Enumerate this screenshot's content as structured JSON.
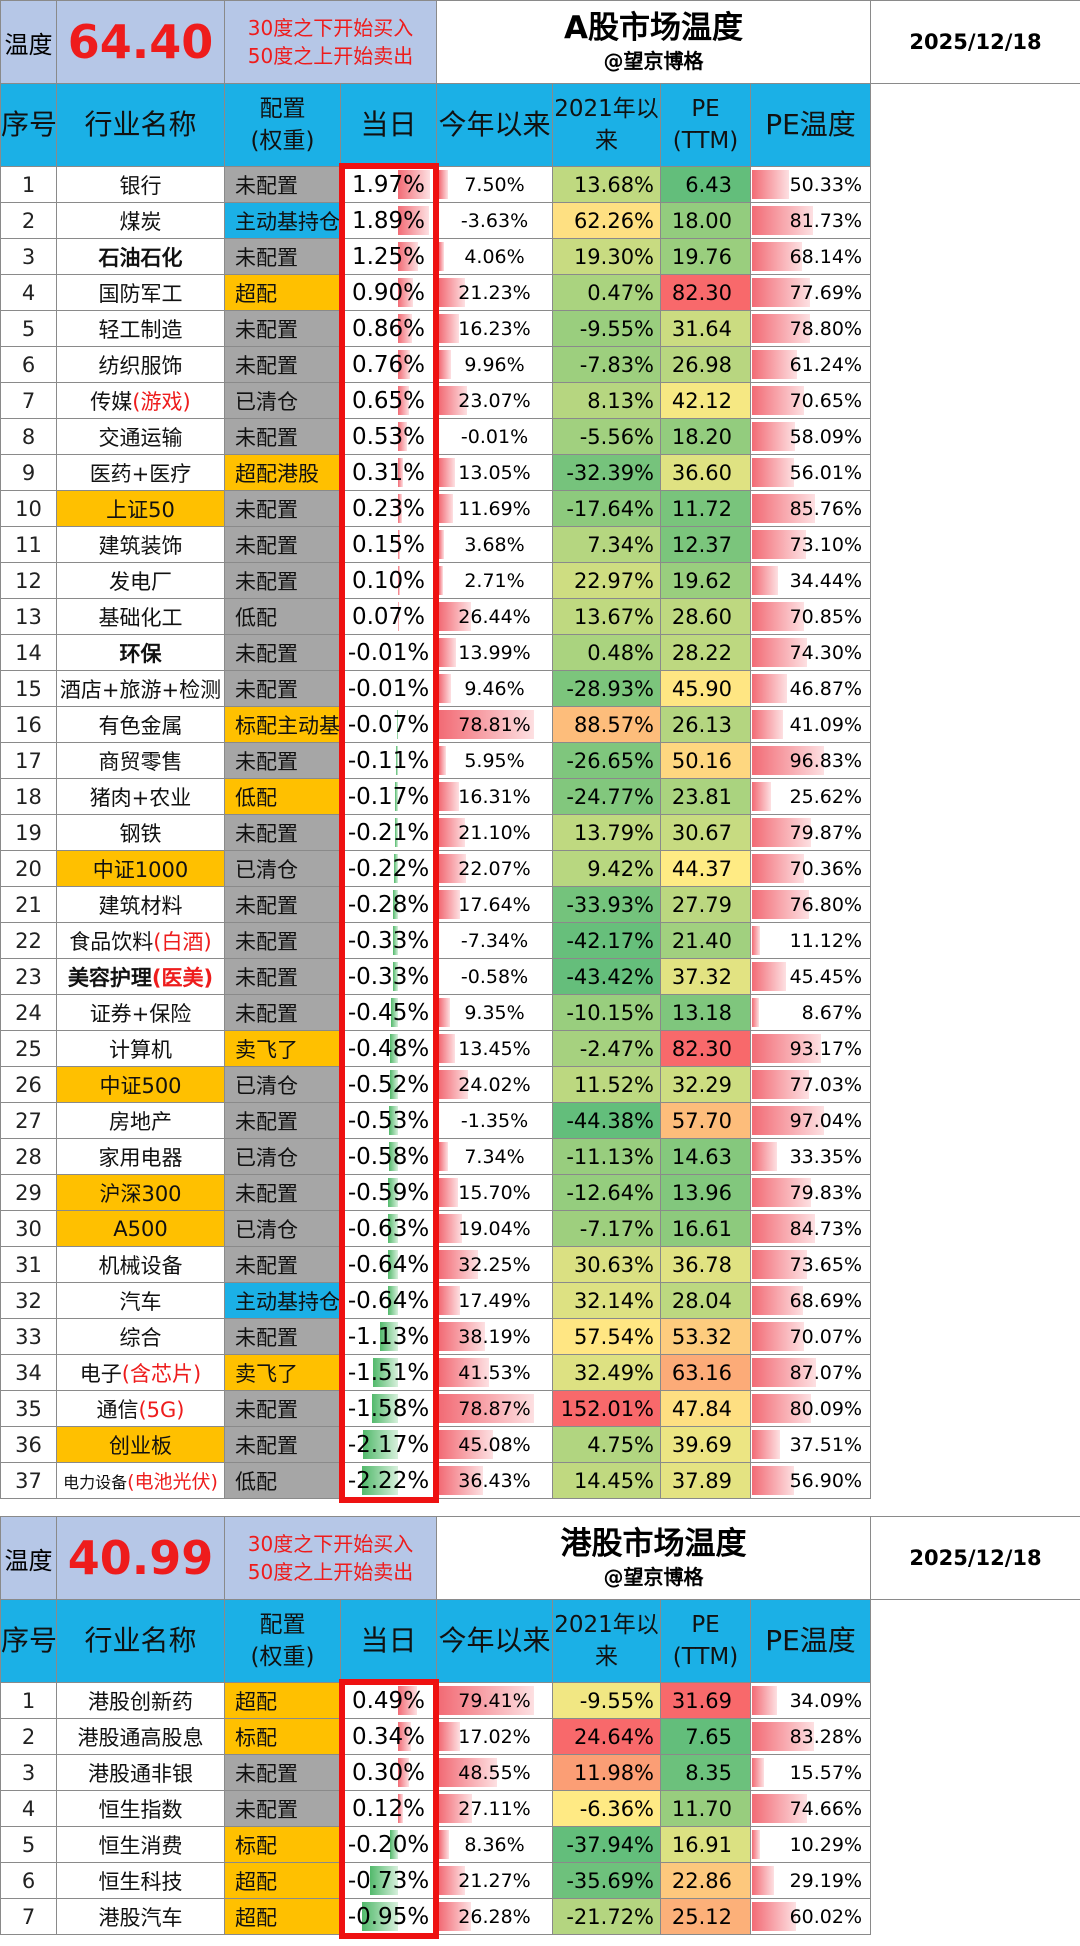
{
  "a_share": {
    "temp_label": "温度",
    "score": "64.40",
    "rule_buy": "30度之下开始买入",
    "rule_sell": "50度之上开始卖出",
    "title": "A股市场温度",
    "author": "@望京博格",
    "date": "2025/12/18",
    "headers": {
      "idx": "序号",
      "name": "行业名称",
      "cfg": "配置\n(权重)",
      "day": "当日",
      "ytd": "今年以来",
      "since2021": "2021年以\n来",
      "pe": "PE\n(TTM)",
      "petemp": "PE温度"
    },
    "rows": [
      {
        "idx": "1",
        "name": "银行",
        "cfg": "未配置",
        "cfg_type": "none",
        "day": "1.97%",
        "ytd": "7.50%",
        "since2021": "13.68%",
        "pe": "6.43",
        "petemp": "50.33%"
      },
      {
        "idx": "2",
        "name": "煤炭",
        "cfg": "主动基持仓",
        "cfg_type": "active",
        "day": "1.89%",
        "ytd": "-3.63%",
        "since2021": "62.26%",
        "pe": "18.00",
        "petemp": "81.73%"
      },
      {
        "idx": "3",
        "name": "石油石化",
        "cfg": "未配置",
        "cfg_type": "none",
        "day": "1.25%",
        "ytd": "4.06%",
        "since2021": "19.30%",
        "pe": "19.76",
        "petemp": "68.14%",
        "bold": true
      },
      {
        "idx": "4",
        "name": "国防军工",
        "cfg": "超配",
        "cfg_type": "over",
        "day": "0.90%",
        "ytd": "21.23%",
        "since2021": "0.47%",
        "pe": "82.30",
        "petemp": "77.69%"
      },
      {
        "idx": "5",
        "name": "轻工制造",
        "cfg": "未配置",
        "cfg_type": "none",
        "day": "0.86%",
        "ytd": "16.23%",
        "since2021": "-9.55%",
        "pe": "31.64",
        "petemp": "78.80%"
      },
      {
        "idx": "6",
        "name": "纺织服饰",
        "cfg": "未配置",
        "cfg_type": "none",
        "day": "0.76%",
        "ytd": "9.96%",
        "since2021": "-7.83%",
        "pe": "26.98",
        "petemp": "61.24%"
      },
      {
        "idx": "7",
        "name": "传媒",
        "name_red": "(游戏)",
        "cfg": "已清仓",
        "cfg_type": "none",
        "day": "0.65%",
        "ytd": "23.07%",
        "since2021": "8.13%",
        "pe": "42.12",
        "petemp": "70.65%"
      },
      {
        "idx": "8",
        "name": "交通运输",
        "cfg": "未配置",
        "cfg_type": "none",
        "day": "0.53%",
        "ytd": "-0.01%",
        "since2021": "-5.56%",
        "pe": "18.20",
        "petemp": "58.09%"
      },
      {
        "idx": "9",
        "name": "医药+医疗",
        "cfg": "超配港股",
        "cfg_type": "over",
        "day": "0.31%",
        "ytd": "13.05%",
        "since2021": "-32.39%",
        "pe": "36.60",
        "petemp": "56.01%"
      },
      {
        "idx": "10",
        "name": "上证50",
        "cfg": "未配置",
        "cfg_type": "none",
        "day": "0.23%",
        "ytd": "11.69%",
        "since2021": "-17.64%",
        "pe": "11.72",
        "petemp": "85.76%",
        "hl": true
      },
      {
        "idx": "11",
        "name": "建筑装饰",
        "cfg": "未配置",
        "cfg_type": "none",
        "day": "0.15%",
        "ytd": "3.68%",
        "since2021": "7.34%",
        "pe": "12.37",
        "petemp": "73.10%"
      },
      {
        "idx": "12",
        "name": "发电厂",
        "cfg": "未配置",
        "cfg_type": "none",
        "day": "0.10%",
        "ytd": "2.71%",
        "since2021": "22.97%",
        "pe": "19.62",
        "petemp": "34.44%"
      },
      {
        "idx": "13",
        "name": "基础化工",
        "cfg": "低配",
        "cfg_type": "none",
        "day": "0.07%",
        "ytd": "26.44%",
        "since2021": "13.67%",
        "pe": "28.60",
        "petemp": "70.85%"
      },
      {
        "idx": "14",
        "name": "环保",
        "cfg": "未配置",
        "cfg_type": "none",
        "day": "-0.01%",
        "ytd": "13.99%",
        "since2021": "0.48%",
        "pe": "28.22",
        "petemp": "74.30%",
        "bold": true
      },
      {
        "idx": "15",
        "name": "酒店+旅游+检测",
        "cfg": "未配置",
        "cfg_type": "none",
        "day": "-0.01%",
        "ytd": "9.46%",
        "since2021": "-28.93%",
        "pe": "45.90",
        "petemp": "46.87%"
      },
      {
        "idx": "16",
        "name": "有色金属",
        "cfg": "标配主动基",
        "cfg_type": "over",
        "day": "-0.07%",
        "ytd": "78.81%",
        "since2021": "88.57%",
        "pe": "26.13",
        "petemp": "41.09%"
      },
      {
        "idx": "17",
        "name": "商贸零售",
        "cfg": "未配置",
        "cfg_type": "none",
        "day": "-0.11%",
        "ytd": "5.95%",
        "since2021": "-26.65%",
        "pe": "50.16",
        "petemp": "96.83%"
      },
      {
        "idx": "18",
        "name": "猪肉+农业",
        "cfg": "低配",
        "cfg_type": "over",
        "day": "-0.17%",
        "ytd": "16.31%",
        "since2021": "-24.77%",
        "pe": "23.81",
        "petemp": "25.62%"
      },
      {
        "idx": "19",
        "name": "钢铁",
        "cfg": "未配置",
        "cfg_type": "none",
        "day": "-0.21%",
        "ytd": "21.10%",
        "since2021": "13.79%",
        "pe": "30.67",
        "petemp": "79.87%"
      },
      {
        "idx": "20",
        "name": "中证1000",
        "cfg": "已清仓",
        "cfg_type": "none",
        "day": "-0.22%",
        "ytd": "22.07%",
        "since2021": "9.42%",
        "pe": "44.37",
        "petemp": "70.36%",
        "hl": true
      },
      {
        "idx": "21",
        "name": "建筑材料",
        "cfg": "未配置",
        "cfg_type": "none",
        "day": "-0.28%",
        "ytd": "17.64%",
        "since2021": "-33.93%",
        "pe": "27.79",
        "petemp": "76.80%"
      },
      {
        "idx": "22",
        "name": "食品饮料",
        "name_red": "(白酒)",
        "cfg": "未配置",
        "cfg_type": "none",
        "day": "-0.33%",
        "ytd": "-7.34%",
        "since2021": "-42.17%",
        "pe": "21.40",
        "petemp": "11.12%"
      },
      {
        "idx": "23",
        "name": "美容护理",
        "name_red": "(医美)",
        "cfg": "未配置",
        "cfg_type": "none",
        "day": "-0.33%",
        "ytd": "-0.58%",
        "since2021": "-43.42%",
        "pe": "37.32",
        "petemp": "45.45%",
        "bold": true
      },
      {
        "idx": "24",
        "name": "证券+保险",
        "cfg": "未配置",
        "cfg_type": "none",
        "day": "-0.45%",
        "ytd": "9.35%",
        "since2021": "-10.15%",
        "pe": "13.18",
        "petemp": "8.67%"
      },
      {
        "idx": "25",
        "name": "计算机",
        "cfg": "卖飞了",
        "cfg_type": "over",
        "day": "-0.48%",
        "ytd": "13.45%",
        "since2021": "-2.47%",
        "pe": "82.30",
        "petemp": "93.17%"
      },
      {
        "idx": "26",
        "name": "中证500",
        "cfg": "已清仓",
        "cfg_type": "none",
        "day": "-0.52%",
        "ytd": "24.02%",
        "since2021": "11.52%",
        "pe": "32.29",
        "petemp": "77.03%",
        "hl": true
      },
      {
        "idx": "27",
        "name": "房地产",
        "cfg": "未配置",
        "cfg_type": "none",
        "day": "-0.53%",
        "ytd": "-1.35%",
        "since2021": "-44.38%",
        "pe": "57.70",
        "petemp": "97.04%"
      },
      {
        "idx": "28",
        "name": "家用电器",
        "cfg": "已清仓",
        "cfg_type": "none",
        "day": "-0.58%",
        "ytd": "7.34%",
        "since2021": "-11.13%",
        "pe": "14.63",
        "petemp": "33.35%"
      },
      {
        "idx": "29",
        "name": "沪深300",
        "cfg": "未配置",
        "cfg_type": "none",
        "day": "-0.59%",
        "ytd": "15.70%",
        "since2021": "-12.64%",
        "pe": "13.96",
        "petemp": "79.83%",
        "hl": true
      },
      {
        "idx": "30",
        "name": "A500",
        "cfg": "已清仓",
        "cfg_type": "none",
        "day": "-0.63%",
        "ytd": "19.04%",
        "since2021": "-7.17%",
        "pe": "16.61",
        "petemp": "84.73%",
        "hl": true
      },
      {
        "idx": "31",
        "name": "机械设备",
        "cfg": "未配置",
        "cfg_type": "none",
        "day": "-0.64%",
        "ytd": "32.25%",
        "since2021": "30.63%",
        "pe": "36.78",
        "petemp": "73.65%"
      },
      {
        "idx": "32",
        "name": "汽车",
        "cfg": "主动基持仓",
        "cfg_type": "active",
        "day": "-0.64%",
        "ytd": "17.49%",
        "since2021": "32.14%",
        "pe": "28.04",
        "petemp": "68.69%"
      },
      {
        "idx": "33",
        "name": "综合",
        "cfg": "未配置",
        "cfg_type": "none",
        "day": "-1.13%",
        "ytd": "38.19%",
        "since2021": "57.54%",
        "pe": "53.32",
        "petemp": "70.07%"
      },
      {
        "idx": "34",
        "name": "电子",
        "name_red": "(含芯片)",
        "cfg": "卖飞了",
        "cfg_type": "over",
        "day": "-1.51%",
        "ytd": "41.53%",
        "since2021": "32.49%",
        "pe": "63.16",
        "petemp": "87.07%"
      },
      {
        "idx": "35",
        "name": "通信",
        "name_red": "(5G)",
        "cfg": "未配置",
        "cfg_type": "none",
        "day": "-1.58%",
        "ytd": "78.87%",
        "since2021": "152.01%",
        "pe": "47.84",
        "petemp": "80.09%"
      },
      {
        "idx": "36",
        "name": "创业板",
        "cfg": "未配置",
        "cfg_type": "none",
        "day": "-2.17%",
        "ytd": "45.08%",
        "since2021": "4.75%",
        "pe": "39.69",
        "petemp": "37.51%",
        "hl": true
      },
      {
        "idx": "37",
        "name": "电力设备",
        "name_red": "(电池光伏)",
        "cfg": "低配",
        "cfg_type": "none",
        "day": "-2.22%",
        "ytd": "36.43%",
        "since2021": "14.45%",
        "pe": "37.89",
        "petemp": "56.90%",
        "small": true
      }
    ]
  },
  "hk_share": {
    "temp_label": "温度",
    "score": "40.99",
    "rule_buy": "30度之下开始买入",
    "rule_sell": "50度之上开始卖出",
    "title": "港股市场温度",
    "author": "@望京博格",
    "date": "2025/12/18",
    "headers": {
      "idx": "序号",
      "name": "行业名称",
      "cfg": "配置\n(权重)",
      "day": "当日",
      "ytd": "今年以来",
      "since2021": "2021年以\n来",
      "pe": "PE\n(TTM)",
      "petemp": "PE温度"
    },
    "rows": [
      {
        "idx": "1",
        "name": "港股创新药",
        "cfg": "超配",
        "cfg_type": "over",
        "day": "0.49%",
        "ytd": "79.41%",
        "since2021": "-9.55%",
        "pe": "31.69",
        "petemp": "34.09%"
      },
      {
        "idx": "2",
        "name": "港股通高股息",
        "cfg": "标配",
        "cfg_type": "over",
        "day": "0.34%",
        "ytd": "17.02%",
        "since2021": "24.64%",
        "pe": "7.65",
        "petemp": "83.28%"
      },
      {
        "idx": "3",
        "name": "港股通非银",
        "cfg": "未配置",
        "cfg_type": "none",
        "day": "0.30%",
        "ytd": "48.55%",
        "since2021": "11.98%",
        "pe": "8.35",
        "petemp": "15.57%"
      },
      {
        "idx": "4",
        "name": "恒生指数",
        "cfg": "未配置",
        "cfg_type": "none",
        "day": "0.12%",
        "ytd": "27.11%",
        "since2021": "-6.36%",
        "pe": "11.70",
        "petemp": "74.66%"
      },
      {
        "idx": "5",
        "name": "恒生消费",
        "cfg": "标配",
        "cfg_type": "over",
        "day": "-0.20%",
        "ytd": "8.36%",
        "since2021": "-37.94%",
        "pe": "16.91",
        "petemp": "10.29%"
      },
      {
        "idx": "6",
        "name": "恒生科技",
        "cfg": "超配",
        "cfg_type": "over",
        "day": "-0.73%",
        "ytd": "21.27%",
        "since2021": "-35.69%",
        "pe": "22.86",
        "petemp": "29.19%"
      },
      {
        "idx": "7",
        "name": "港股汽车",
        "cfg": "超配",
        "cfg_type": "over",
        "day": "-0.95%",
        "ytd": "26.28%",
        "since2021": "-21.72%",
        "pe": "25.12",
        "petemp": "60.02%"
      }
    ]
  },
  "colors": {
    "header_blue": "#1bb0e6",
    "label_bg": "#b6c7e7",
    "score_red": "#ee1c1c",
    "highlight_orange": "#ffc000",
    "cfg_grey": "#a6a6a6",
    "heat_green": "#63be7b",
    "heat_yellow": "#ffeb84",
    "heat_red": "#f8696b",
    "box_red": "#ee1111"
  }
}
